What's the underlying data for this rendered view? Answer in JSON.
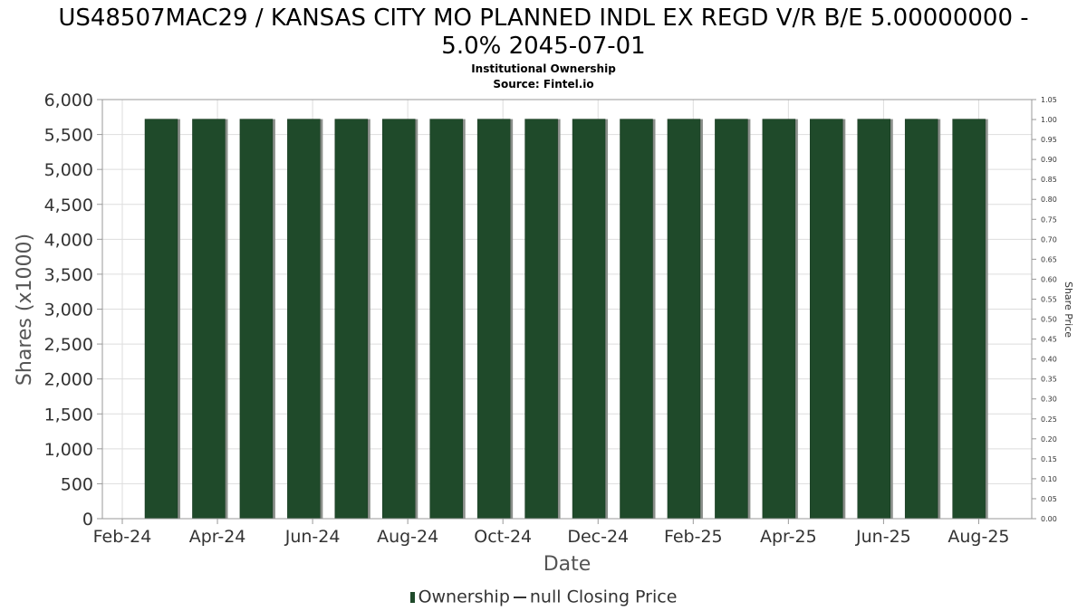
{
  "chart_data": {
    "type": "bar",
    "title_line1": "US48507MAC29 / KANSAS CITY MO PLANNED INDL EX REGD V/R B/E 5.00000000 -",
    "title_line2": "5.0% 2045-07-01",
    "subtitle": "Institutional Ownership",
    "source": "Source: Fintel.io",
    "xlabel": "Date",
    "ylabel": "Shares (x1000)",
    "y2label": "Share Price",
    "ylim": [
      0,
      6000
    ],
    "y2lim": [
      0,
      1.05
    ],
    "y_ticks": [
      "0",
      "500",
      "1,000",
      "1,500",
      "2,000",
      "2,500",
      "3,000",
      "3,500",
      "4,000",
      "4,500",
      "5,000",
      "5,500",
      "6,000"
    ],
    "y2_ticks": [
      "0.00",
      "0.05",
      "0.10",
      "0.15",
      "0.20",
      "0.25",
      "0.30",
      "0.35",
      "0.40",
      "0.45",
      "0.50",
      "0.55",
      "0.60",
      "0.65",
      "0.70",
      "0.75",
      "0.80",
      "0.85",
      "0.90",
      "0.95",
      "1.00",
      "1.05"
    ],
    "x_ticks": [
      "Feb-24",
      "Apr-24",
      "Jun-24",
      "Aug-24",
      "Oct-24",
      "Dec-24",
      "Feb-25",
      "Apr-25",
      "Jun-25",
      "Aug-25"
    ],
    "series": [
      {
        "name": "Ownership",
        "values": [
          5720,
          5720,
          5720,
          5720,
          5720,
          5720,
          5720,
          5720,
          5720,
          5720,
          5720,
          5720,
          5720,
          5720,
          5720,
          5720,
          5720,
          5720
        ]
      }
    ],
    "legend": [
      "Ownership",
      "null Closing Price"
    ],
    "legend_position": "bottom",
    "grid": true,
    "colors": {
      "bar": "#1f4a2a",
      "bar_shadow": "#8a8f8a",
      "grid": "#dddddd"
    }
  }
}
